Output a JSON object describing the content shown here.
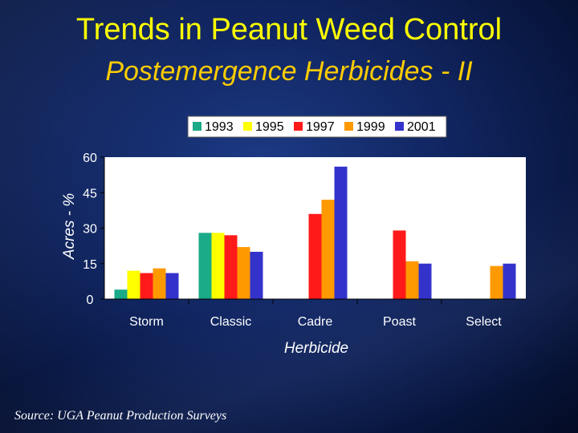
{
  "title": "Trends in Peanut Weed Control",
  "subtitle": "Postemergence Herbicides - II",
  "source": "Source: UGA Peanut Production Surveys",
  "chart_data": {
    "type": "bar",
    "categories": [
      "Storm",
      "Classic",
      "Cadre",
      "Poast",
      "Select"
    ],
    "series": [
      {
        "name": "1993",
        "color": "#1aaa88",
        "values": [
          4,
          28,
          null,
          null,
          null
        ]
      },
      {
        "name": "1995",
        "color": "#ffff00",
        "values": [
          12,
          28,
          null,
          null,
          null
        ]
      },
      {
        "name": "1997",
        "color": "#ff1a1a",
        "values": [
          11,
          27,
          36,
          29,
          null
        ]
      },
      {
        "name": "1999",
        "color": "#ff9900",
        "values": [
          13,
          22,
          42,
          16,
          14
        ]
      },
      {
        "name": "2001",
        "color": "#3333cc",
        "values": [
          11,
          20,
          56,
          15,
          15
        ]
      }
    ],
    "xlabel": "Herbicide",
    "ylabel": "Acres - %",
    "ylim": [
      0,
      60
    ],
    "yticks": [
      0,
      15,
      30,
      45,
      60
    ],
    "grid": false,
    "legend": "top"
  }
}
